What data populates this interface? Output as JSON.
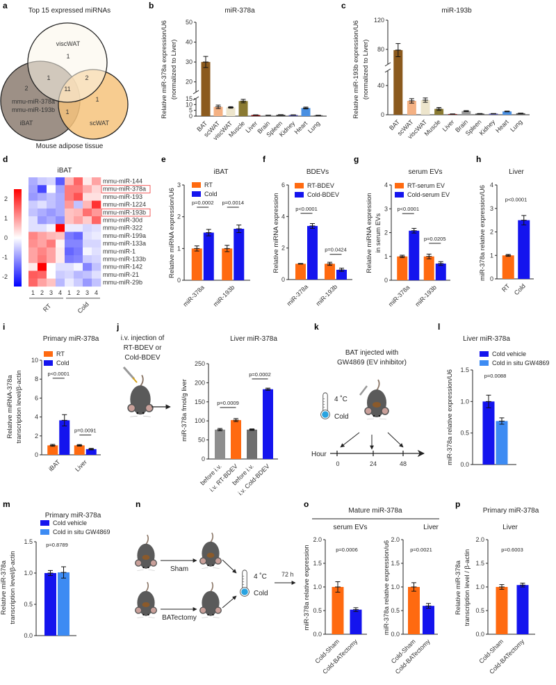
{
  "panel_letters": [
    "a",
    "b",
    "c",
    "d",
    "e",
    "f",
    "g",
    "h",
    "i",
    "j",
    "k",
    "l",
    "m",
    "n",
    "o",
    "p"
  ],
  "venn": {
    "title": "Top 15 expressed miRNAs",
    "footer": "Mouse adipose tissue",
    "sets": [
      "viscWAT",
      "iBAT",
      "scWAT"
    ],
    "counts": {
      "visc_only": "1",
      "ibat_visc": "1",
      "visc_sc": "2",
      "all": "11",
      "ibat_only": "2",
      "sc_only": "1",
      "ibat_sc": "1"
    },
    "ibat_only_mirnas": [
      "mmu-miR-378a",
      "mmu-miR-193b"
    ],
    "colors": {
      "viscWAT": "#FBF5EA",
      "iBAT": "#9D9086",
      "scWAT": "#F6C37C"
    }
  },
  "diagrams": {
    "j_injection": [
      "i.v. injection of",
      "RT-BDEV  or",
      "Cold-BDEV"
    ],
    "k": {
      "title": [
        "BAT injected with",
        "GW4869 (EV inhibitor)"
      ],
      "temp": "4 ˚C",
      "cold": "Cold",
      "axis_label": "Hour",
      "ticks": [
        "0",
        "24",
        "48"
      ]
    },
    "n": {
      "sham": "Sham",
      "batectomy": "BATectomy",
      "temp": "4 ˚C",
      "cold": "Cold",
      "duration": "72 h"
    },
    "o_header": "Mature miR-378a",
    "p_header": "Primary miR-378a"
  },
  "colors": {
    "rt": "#FF6A10",
    "cold": "#1414EE",
    "gw": "#3D8BF3",
    "grey1": "#8E8E8E",
    "grey2": "#6F6F6F"
  },
  "heatmap": {
    "title": "iBAT",
    "rows": [
      "mmu-miR-144",
      "mmu-miR-378a",
      "mmu-miR-193",
      "mmu-miR-1224",
      "mmu-miR-193b",
      "mmu-miR-30d",
      "mmu-miR-322",
      "mmu-miR-199a",
      "mmu-miR-133a",
      "mmu-miR-1",
      "mmu-miR-133b",
      "mmu-miR-142",
      "mmu-miR-21",
      "mmu-miR-29b"
    ],
    "highlighted": [
      "mmu-miR-378a",
      "mmu-miR-193b"
    ],
    "columns": [
      "1",
      "2",
      "3",
      "4",
      "1",
      "2",
      "3",
      "4"
    ],
    "groups": [
      "RT",
      "Cold"
    ],
    "scale_ticks": [
      "2",
      "1",
      "0",
      "-1",
      "-2"
    ],
    "range": [
      -2.5,
      2.5
    ],
    "values": [
      [
        -0.8,
        -0.5,
        -0.4,
        -1.6,
        0.7,
        1.5,
        0.2,
        0.9
      ],
      [
        -0.9,
        -1.8,
        0,
        -0.9,
        1.3,
        1.3,
        0.8,
        0.4
      ],
      [
        -1,
        -0.8,
        -0.6,
        -0.8,
        1.3,
        1.7,
        0.3,
        0.3
      ],
      [
        -0.5,
        -0.3,
        -0.6,
        -0.8,
        1.0,
        -0.6,
        0.7,
        2.0
      ],
      [
        -0.6,
        -0.8,
        -1,
        -0.8,
        0.6,
        0.7,
        1.4,
        1.0
      ],
      [
        -0.3,
        -1,
        -0.8,
        -1.1,
        0.6,
        0.9,
        0.5,
        1.5
      ],
      [
        -0.3,
        -0.3,
        -0.1,
        2.5,
        -0.2,
        -0.2,
        -0.4,
        -0.3
      ],
      [
        1.2,
        0.9,
        0.7,
        0.6,
        -1.3,
        -1.5,
        -0.3,
        -0.2
      ],
      [
        1.1,
        0.9,
        1.3,
        0.1,
        -1.2,
        -1.2,
        -0.4,
        -0.4
      ],
      [
        0.9,
        1.2,
        0.9,
        0.2,
        -1.5,
        -1.3,
        -0.1,
        -0.3
      ],
      [
        0.9,
        1.3,
        0.9,
        0.2,
        -1.3,
        -1.2,
        -0.5,
        -0.4
      ],
      [
        0.2,
        2.5,
        0,
        -0.3,
        -0.3,
        -0.1,
        -1.2,
        -0.6
      ],
      [
        1.6,
        1.5,
        0,
        -0.5,
        -0.4,
        -0.7,
        -0.6,
        -0.3
      ],
      [
        1.5,
        0.9,
        0.6,
        -0.7,
        -0.2,
        -0.5,
        -1.0,
        -0.6
      ]
    ]
  },
  "chart_data": [
    {
      "id": "b",
      "type": "bar",
      "title": "miR-378a",
      "ylabel": [
        "Relative miR-378a expression/U6",
        "(normalized to Liver)"
      ],
      "categories": [
        "BAT",
        "scWAT",
        "viscWAT",
        "Muscle",
        "Liver",
        "Brain",
        "Spleen",
        "Kidney",
        "Heart",
        "Lung"
      ],
      "ylim_segments": [
        [
          0,
          15
        ],
        [
          15,
          50
        ]
      ],
      "yticks": [
        "0",
        "5",
        "10",
        "15",
        "20",
        "30",
        "40",
        "50"
      ],
      "series": [
        {
          "name": "",
          "values": [
            30,
            8,
            7.5,
            13,
            1,
            0.8,
            1.2,
            1,
            7,
            0.7
          ],
          "sem": [
            2.8,
            1.5,
            0.7,
            1.5,
            0.1,
            0.1,
            0.1,
            0.1,
            0.8,
            0.1
          ],
          "colors": [
            "#8B5A1E",
            "#F4B183",
            "#EDE5CC",
            "#8A7A32",
            "#8B1A1A",
            "#9A9A9A",
            "#444444",
            "#5A5AAA",
            "#4A90E2",
            "#555555"
          ]
        }
      ],
      "pvalues": [],
      "legend": false
    },
    {
      "id": "c",
      "type": "bar",
      "title": "miR-193b",
      "ylabel": [
        "Relative miR-193b expression/U6",
        "(normalized to Liver)"
      ],
      "categories": [
        "BAT",
        "scWAT",
        "viscWAT",
        "Muscle",
        "Liver",
        "Brain",
        "Spleen",
        "Kidney",
        "Heart",
        "Lung"
      ],
      "ylim_segments": [
        [
          0,
          60
        ],
        [
          60,
          120
        ]
      ],
      "yticks": [
        "0",
        "40",
        "80",
        "120"
      ],
      "series": [
        {
          "name": "",
          "values": [
            79,
            19,
            20,
            8,
            1,
            5,
            1.5,
            1.5,
            4.5,
            2
          ],
          "sem": [
            9,
            3,
            3,
            2,
            0.2,
            0.6,
            0.2,
            0.2,
            0.5,
            0.3
          ],
          "colors": [
            "#8B5A1E",
            "#F4B183",
            "#EDE5CC",
            "#8A7A32",
            "#8B1A1A",
            "#9A9A9A",
            "#444444",
            "#5A5AAA",
            "#4A90E2",
            "#555555"
          ]
        }
      ],
      "pvalues": [],
      "legend": false
    },
    {
      "id": "e",
      "type": "bar",
      "title": "iBAT",
      "ylabel": [
        "Relative miRNA expression/U6"
      ],
      "categories": [
        "miR-378a",
        "miR-193b"
      ],
      "ylim": [
        0,
        3
      ],
      "yticks": [
        "0",
        "1",
        "2",
        "3"
      ],
      "series": [
        {
          "name": "RT",
          "color": "#FF6A10",
          "values": [
            1,
            1
          ],
          "sem": [
            0.08,
            0.1
          ]
        },
        {
          "name": "Cold",
          "color": "#1414EE",
          "values": [
            1.5,
            1.62
          ],
          "sem": [
            0.1,
            0.12
          ]
        }
      ],
      "pvalues": [
        {
          "text": "p=0.0002",
          "group": 0,
          "y": 2.3,
          "line": true
        },
        {
          "text": "p=0.0014",
          "group": 1,
          "y": 2.3,
          "line": true
        }
      ],
      "legend": true
    },
    {
      "id": "f",
      "type": "bar",
      "title": "BDEVs",
      "ylabel": [
        "Relative miRNA expression"
      ],
      "categories": [
        "miR-378a",
        "miR-193b"
      ],
      "ylim": [
        0,
        6
      ],
      "yticks": [
        "0",
        "2",
        "4",
        "6"
      ],
      "series": [
        {
          "name": "RT-BDEV",
          "color": "#FF6A10",
          "values": [
            1,
            1
          ],
          "sem": [
            0.02,
            0.1
          ]
        },
        {
          "name": "Cold-BDEV",
          "color": "#1414EE",
          "values": [
            3.4,
            0.62
          ],
          "sem": [
            0.15,
            0.1
          ]
        }
      ],
      "pvalues": [
        {
          "text": "p<0.0001",
          "group": 0,
          "y": 4.2,
          "line": true
        },
        {
          "text": "p=0.0424",
          "group": 1,
          "y": 1.6,
          "line": true
        }
      ],
      "legend": true
    },
    {
      "id": "g",
      "type": "bar",
      "title": "serum EVs",
      "ylabel": [
        "Relative miRNA expression",
        "in serum EVs"
      ],
      "categories": [
        "miR-378a",
        "miR-193b"
      ],
      "ylim": [
        0,
        4
      ],
      "yticks": [
        "0",
        "1",
        "2",
        "3",
        "4"
      ],
      "series": [
        {
          "name": "RT-serum EV",
          "color": "#FF6A10",
          "values": [
            1,
            1
          ],
          "sem": [
            0.05,
            0.1
          ]
        },
        {
          "name": "Cold-serum EV",
          "color": "#1414EE",
          "values": [
            2.08,
            0.7
          ],
          "sem": [
            0.1,
            0.08
          ]
        }
      ],
      "pvalues": [
        {
          "text": "p<0.0001",
          "group": 0,
          "y": 2.8,
          "line": true
        },
        {
          "text": "p=0.0205",
          "group": 1,
          "y": 1.55,
          "line": true
        }
      ],
      "legend": true
    },
    {
      "id": "h",
      "type": "bar",
      "title": "Liver",
      "ylabel": [
        "miR-378a relative expression/U6"
      ],
      "categories": [
        "RT",
        "Cold"
      ],
      "ylim": [
        0,
        4
      ],
      "yticks": [
        "0",
        "1",
        "2",
        "3",
        "4"
      ],
      "series": [
        {
          "name": "",
          "values": [
            1,
            2.5
          ],
          "sem": [
            0.04,
            0.2
          ],
          "colors": [
            "#FF6A10",
            "#1414EE"
          ]
        }
      ],
      "pvalues": [
        {
          "text": "p<0.0001",
          "group": null,
          "y": 3.3,
          "line": false
        }
      ],
      "legend": false
    },
    {
      "id": "i",
      "type": "bar",
      "title": "Primary miR-378a",
      "ylabel": [
        "Relative miRNA-378a",
        "transcription level/β-actin"
      ],
      "categories": [
        "iBAT",
        "Liver"
      ],
      "ylim": [
        0,
        10
      ],
      "yticks": [
        "0",
        "2",
        "4",
        "6",
        "8",
        "10"
      ],
      "series": [
        {
          "name": "RT",
          "color": "#FF6A10",
          "values": [
            1,
            1
          ],
          "sem": [
            0.1,
            0.08
          ]
        },
        {
          "name": "Cold",
          "color": "#1414EE",
          "values": [
            3.65,
            0.6
          ],
          "sem": [
            0.6,
            0.08
          ]
        }
      ],
      "pvalues": [
        {
          "text": "p<0.0001",
          "group": 0,
          "y": 8.1,
          "line": true
        },
        {
          "text": "p=0.0091",
          "group": 1,
          "y": 2.1,
          "line": true
        }
      ],
      "legend": true
    },
    {
      "id": "j",
      "type": "bar",
      "title": "Liver miR-378a",
      "ylabel": [
        "miR-378a fmol/g liver"
      ],
      "categories": [
        "before i.v.",
        "i.v. RT-BDEV",
        "before i.v.",
        "i.v. Cold-BDEV"
      ],
      "ylim": [
        0,
        250
      ],
      "yticks": [
        "0",
        "50",
        "100",
        "150",
        "200",
        "250"
      ],
      "series": [
        {
          "name": "",
          "values": [
            77,
            102,
            77,
            183
          ],
          "sem": [
            3,
            4,
            2,
            3
          ],
          "colors": [
            "#8E8E8E",
            "#FF6A10",
            "#6F6F6F",
            "#1414EE"
          ]
        }
      ],
      "pvalues": [
        {
          "text": "p=0.0009",
          "bars": [
            0,
            1
          ],
          "y": 135,
          "line": true
        },
        {
          "text": "p=0.0002",
          "bars": [
            2,
            3
          ],
          "y": 210,
          "line": true
        }
      ],
      "legend": false
    },
    {
      "id": "l",
      "type": "bar",
      "title": "Liver miR-378a",
      "ylabel": [
        "miR-378a relative expression/U6"
      ],
      "categories": [
        ""
      ],
      "ylim": [
        0,
        1.5
      ],
      "yticks": [
        "0.0",
        "0.5",
        "1.0",
        "1.5"
      ],
      "series": [
        {
          "name": "Cold vehicle",
          "color": "#1414EE",
          "values": [
            1.0
          ],
          "sem": [
            0.1
          ]
        },
        {
          "name": "Cold  in situ GW4869",
          "color": "#3D8BF3",
          "values": [
            0.69
          ],
          "sem": [
            0.05
          ]
        }
      ],
      "pvalues": [
        {
          "text": "p=0.0088",
          "group": null,
          "y": 1.38,
          "line": false
        }
      ],
      "legend": true
    },
    {
      "id": "m",
      "type": "bar",
      "title": "Primary miR-378a",
      "ylabel": [
        "Relative miR-378a",
        "transcription level/β-actin"
      ],
      "categories": [
        ""
      ],
      "ylim": [
        0,
        1.5
      ],
      "yticks": [
        "0.0",
        "0.5",
        "1.0",
        "1.5"
      ],
      "series": [
        {
          "name": "Cold vehicle",
          "color": "#1414EE",
          "values": [
            1.0
          ],
          "sem": [
            0.04
          ]
        },
        {
          "name": "Cold  in situ GW4869",
          "color": "#3D8BF3",
          "values": [
            1.01
          ],
          "sem": [
            0.09
          ]
        }
      ],
      "pvalues": [
        {
          "text": "p=0.8789",
          "group": null,
          "y": 1.42,
          "line": false
        }
      ],
      "legend": true
    },
    {
      "id": "o1",
      "type": "bar",
      "title": "serum EVs",
      "ylabel": [
        "miR-378a relative expression"
      ],
      "categories": [
        "Cold-Sham",
        "Cold-BATectomy"
      ],
      "ylim": [
        0,
        2
      ],
      "yticks": [
        "0.0",
        "0.5",
        "1.0",
        "1.5",
        "2.0"
      ],
      "series": [
        {
          "name": "",
          "values": [
            1.0,
            0.52
          ],
          "sem": [
            0.11,
            0.04
          ],
          "colors": [
            "#FF6A10",
            "#1414EE"
          ]
        }
      ],
      "pvalues": [
        {
          "text": "p=0.0006",
          "group": null,
          "y": 1.75,
          "line": false
        }
      ],
      "legend": false
    },
    {
      "id": "o2",
      "type": "bar",
      "title": "Liver",
      "ylabel": [
        "miR-378a relative expression/u6"
      ],
      "categories": [
        "Cold-Sham",
        "Cold-BATectomy"
      ],
      "ylim": [
        0,
        2
      ],
      "yticks": [
        "0.0",
        "0.5",
        "1.0",
        "1.5",
        "2.0"
      ],
      "series": [
        {
          "name": "",
          "values": [
            1.0,
            0.6
          ],
          "sem": [
            0.09,
            0.05
          ],
          "colors": [
            "#FF6A10",
            "#1414EE"
          ]
        }
      ],
      "pvalues": [
        {
          "text": "p=0.0021",
          "group": null,
          "y": 1.75,
          "line": false
        }
      ],
      "legend": false
    },
    {
      "id": "p",
      "type": "bar",
      "title": "Liver",
      "ylabel": [
        "Relative miR-378a",
        "transcription level / β-actin"
      ],
      "categories": [
        "Cold-Sham",
        "Cold-BATectomy"
      ],
      "ylim": [
        0,
        2
      ],
      "yticks": [
        "0.0",
        "0.5",
        "1.0",
        "1.5",
        "2.0"
      ],
      "series": [
        {
          "name": "",
          "values": [
            1.0,
            1.04
          ],
          "sem": [
            0.05,
            0.04
          ],
          "colors": [
            "#FF6A10",
            "#1414EE"
          ]
        }
      ],
      "pvalues": [
        {
          "text": "p=0.6003",
          "group": null,
          "y": 1.75,
          "line": false
        }
      ],
      "legend": false
    }
  ]
}
